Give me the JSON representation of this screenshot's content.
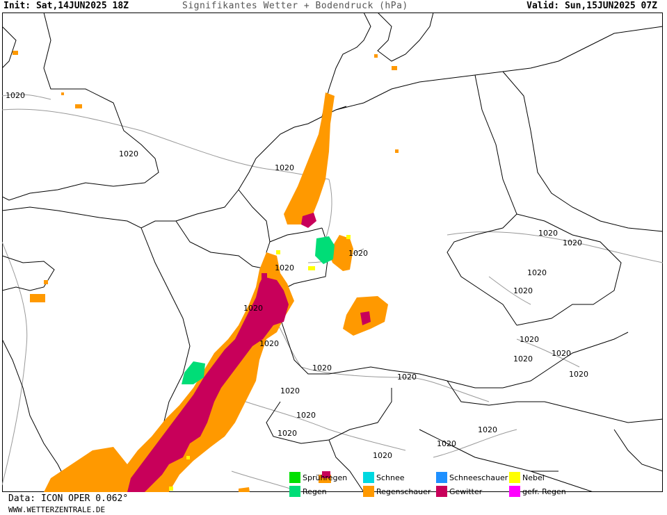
{
  "header": {
    "init": "Init: Sat,14JUN2025 18Z",
    "title": "Signifikantes Wetter + Bodendruck (hPa)",
    "valid": "Valid: Sun,15JUN2025 07Z"
  },
  "isobar_labels": [
    "1020",
    "1020",
    "1020",
    "1020",
    "1020",
    "1020",
    "1020",
    "1020",
    "1020",
    "1020",
    "1020",
    "1020",
    "1020",
    "1020",
    "1020",
    "1020",
    "1020",
    "1020",
    "1020",
    "1020",
    "1020",
    "1020",
    "1020"
  ],
  "legend": {
    "items": [
      {
        "label": "Sprühregen",
        "color": "#00e000"
      },
      {
        "label": "Schnee",
        "color": "#00d8e0"
      },
      {
        "label": "Schneeschauer",
        "color": "#1e90ff"
      },
      {
        "label": "Nebel",
        "color": "#ffff00"
      },
      {
        "label": "Regen",
        "color": "#00dd77"
      },
      {
        "label": "Regenschauer",
        "color": "#ff9900"
      },
      {
        "label": "Gewitter",
        "color": "#c8005a"
      },
      {
        "label": "gefr. Regen",
        "color": "#ff00ff"
      }
    ]
  },
  "footer": {
    "data_line": "Data: ICON OPER 0.062°",
    "site": "WWW.WETTERZENTRALE.DE"
  },
  "colors": {
    "coast": "#000000",
    "isobar": "#999999",
    "shower": "#ff9900",
    "thunder": "#c8005a",
    "rain": "#00dd77",
    "fog": "#ffff00"
  }
}
